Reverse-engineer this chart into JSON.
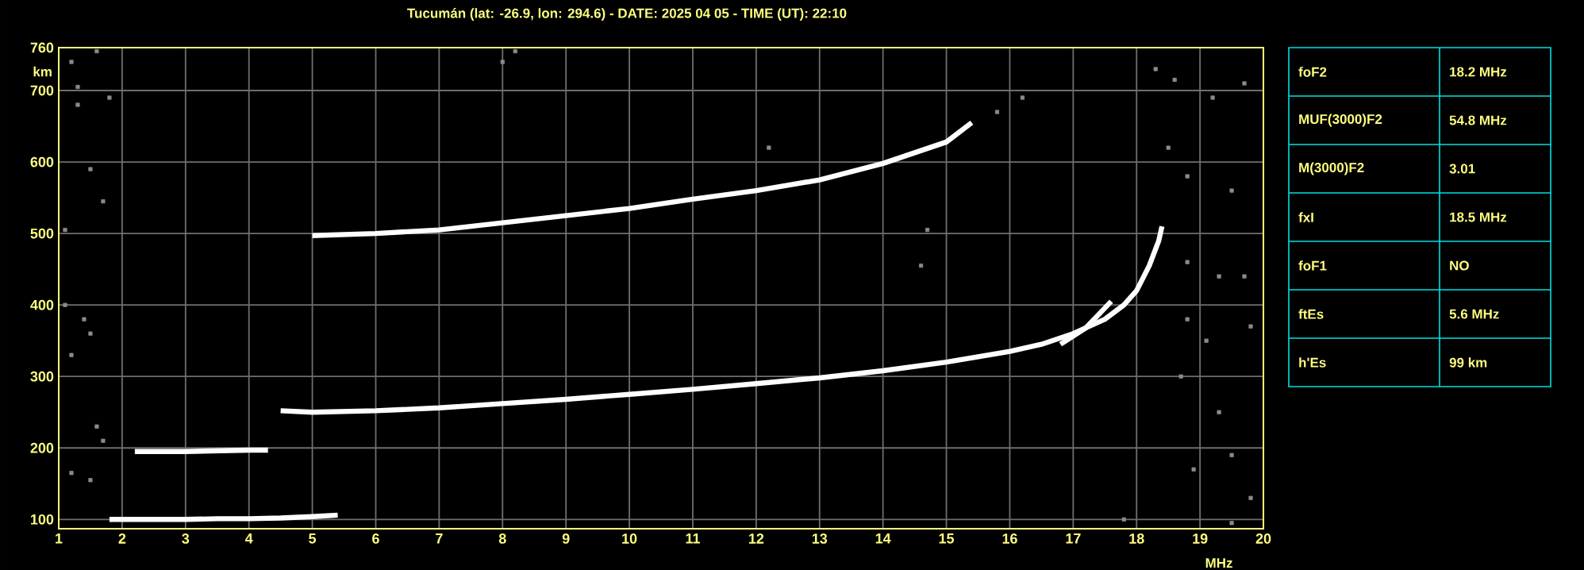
{
  "chart_data": [
    {
      "type": "line",
      "title": "Tucumán (lat: -26.9, lon: 294.6) - DATE: 2025 04 05 - TIME (UT): 22:10",
      "xlabel": "MHz",
      "ylabel": "km",
      "xlim": [
        1,
        20
      ],
      "ylim": [
        87,
        760
      ],
      "xticks": [
        1,
        2,
        3,
        4,
        5,
        6,
        7,
        8,
        9,
        10,
        11,
        12,
        13,
        14,
        15,
        16,
        17,
        18,
        19,
        20
      ],
      "yticks": [
        100,
        200,
        300,
        400,
        500,
        600,
        700,
        760
      ],
      "grid": true,
      "marker": "none",
      "line_style": "solid",
      "series": [
        {
          "type": "line",
          "color": "#ffffff",
          "x": [
            4.5,
            5,
            6,
            7,
            8,
            9,
            10,
            11,
            12,
            13,
            14,
            15,
            16,
            16.5,
            17,
            17.5,
            17.8,
            18.0,
            18.2,
            18.35,
            18.4
          ],
          "values": [
            252,
            250,
            252,
            256,
            262,
            268,
            275,
            282,
            290,
            298,
            308,
            320,
            335,
            345,
            360,
            380,
            400,
            420,
            455,
            490,
            510
          ]
        },
        {
          "type": "line",
          "color": "#ffffff",
          "x": [
            16.8,
            17.2,
            17.6
          ],
          "values": [
            345,
            368,
            405
          ]
        },
        {
          "type": "line",
          "color": "#ffffff",
          "x": [
            5,
            6,
            7,
            8,
            9,
            10,
            11,
            12,
            13,
            14,
            15,
            15.4
          ],
          "values": [
            497,
            500,
            505,
            515,
            525,
            535,
            548,
            560,
            575,
            598,
            628,
            655
          ]
        },
        {
          "type": "line",
          "color": "#ffffff",
          "x": [
            1.8,
            2.5,
            3,
            3.5,
            4,
            4.5,
            5,
            5.4
          ],
          "values": [
            100,
            100,
            100,
            101,
            101,
            102,
            104,
            106
          ]
        },
        {
          "type": "line",
          "color": "#ffffff",
          "x": [
            2.2,
            3,
            3.5,
            4,
            4.3
          ],
          "values": [
            195,
            195,
            196,
            197,
            197
          ]
        },
        {
          "type": "scatter",
          "marker": "square",
          "color": "#8a8a8a",
          "x": [
            1.2,
            1.6,
            1.3,
            1.3,
            1.5,
            1.7,
            1.8,
            1.1,
            8.0,
            8.2,
            12.2,
            14.7,
            14.6,
            18.3,
            18.6,
            19.2,
            19.7,
            18.5,
            18.8,
            19.5,
            18.8,
            19.3,
            19.7,
            18.8,
            19.1,
            19.8,
            18.7,
            19.3,
            19.5,
            18.9,
            19.8,
            17.8,
            19.5,
            1.1,
            1.4,
            1.5,
            1.2,
            1.6,
            1.7,
            1.2,
            1.5,
            16.2,
            15.8
          ],
          "values": [
            740,
            755,
            680,
            705,
            590,
            545,
            690,
            505,
            740,
            755,
            620,
            505,
            455,
            730,
            715,
            690,
            710,
            620,
            580,
            560,
            460,
            440,
            440,
            380,
            350,
            370,
            300,
            250,
            190,
            170,
            130,
            100,
            95,
            400,
            380,
            360,
            330,
            230,
            210,
            165,
            155,
            690,
            670
          ]
        }
      ]
    },
    {
      "type": "other",
      "categories": [
        "foF2",
        "MUF(3000)F2",
        "M(3000)F2",
        "fxI",
        "foF1",
        "ftEs",
        "h'Es"
      ],
      "value_labels": [
        "18.2 MHz",
        "54.8 MHz",
        "3.01",
        "18.5 MHz",
        "NO",
        "5.6 MHz",
        "99 km"
      ]
    }
  ]
}
